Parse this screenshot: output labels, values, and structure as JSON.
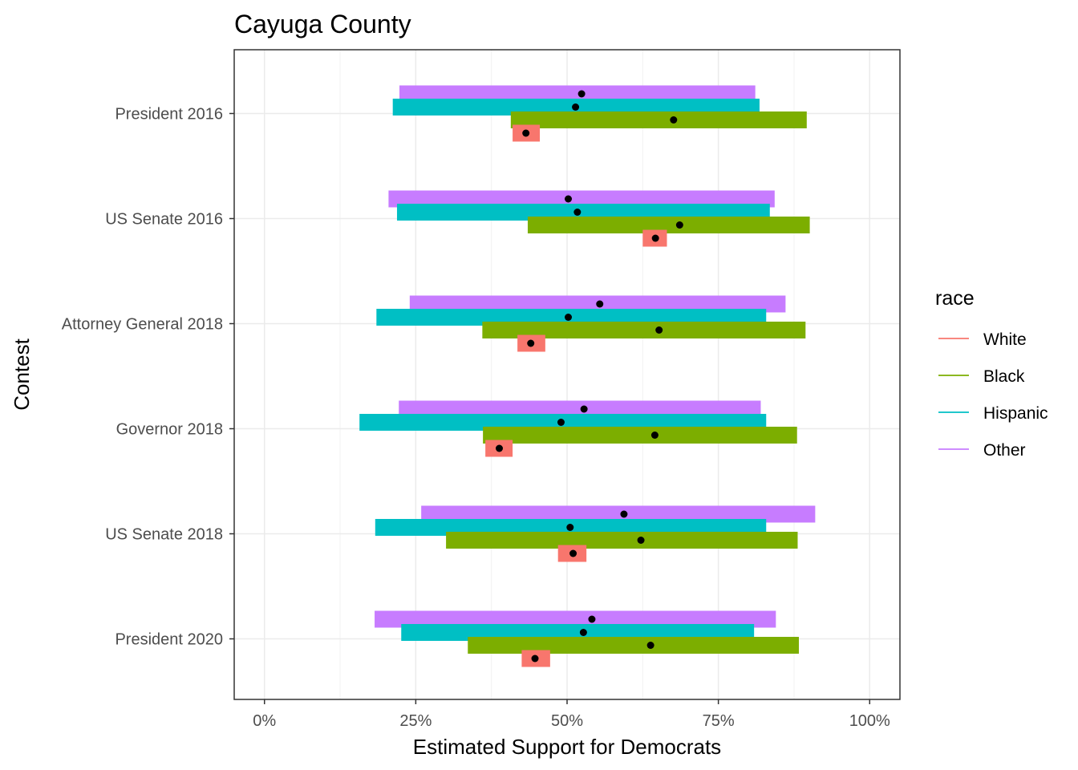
{
  "chart_data": {
    "type": "bar",
    "subtype": "horizontal-interval-with-point",
    "title": "Cayuga County",
    "xlabel": "Estimated Support for Democrats",
    "ylabel": "Contest",
    "xlim": [
      -0.05,
      1.05
    ],
    "x_ticks": [
      0,
      0.25,
      0.5,
      0.75,
      1.0
    ],
    "x_tick_labels": [
      "0%",
      "25%",
      "50%",
      "75%",
      "100%"
    ],
    "grid": true,
    "legend": {
      "title": "race",
      "placement": "right",
      "entries": [
        {
          "name": "White",
          "color": "#F8766D"
        },
        {
          "name": "Black",
          "color": "#7CAE00"
        },
        {
          "name": "Hispanic",
          "color": "#00BFC4"
        },
        {
          "name": "Other",
          "color": "#C77CFF"
        }
      ]
    },
    "categories": [
      "President 2016",
      "US Senate 2016",
      "Attorney General 2018",
      "Governor 2018",
      "US Senate 2018",
      "President 2020"
    ],
    "series": [
      {
        "name": "White",
        "color": "#F8766D",
        "points": [
          {
            "contest": "President 2016",
            "low": 0.41,
            "high": 0.455,
            "estimate": 0.432
          },
          {
            "contest": "US Senate 2016",
            "low": 0.625,
            "high": 0.665,
            "estimate": 0.646
          },
          {
            "contest": "Attorney General 2018",
            "low": 0.418,
            "high": 0.464,
            "estimate": 0.44
          },
          {
            "contest": "Governor 2018",
            "low": 0.365,
            "high": 0.41,
            "estimate": 0.388
          },
          {
            "contest": "US Senate 2018",
            "low": 0.485,
            "high": 0.532,
            "estimate": 0.51
          },
          {
            "contest": "President 2020",
            "low": 0.425,
            "high": 0.472,
            "estimate": 0.447
          }
        ]
      },
      {
        "name": "Black",
        "color": "#7CAE00",
        "points": [
          {
            "contest": "President 2016",
            "low": 0.407,
            "high": 0.896,
            "estimate": 0.676
          },
          {
            "contest": "US Senate 2016",
            "low": 0.435,
            "high": 0.901,
            "estimate": 0.686
          },
          {
            "contest": "Attorney General 2018",
            "low": 0.36,
            "high": 0.894,
            "estimate": 0.652
          },
          {
            "contest": "Governor 2018",
            "low": 0.361,
            "high": 0.88,
            "estimate": 0.645
          },
          {
            "contest": "US Senate 2018",
            "low": 0.3,
            "high": 0.881,
            "estimate": 0.622
          },
          {
            "contest": "President 2020",
            "low": 0.336,
            "high": 0.883,
            "estimate": 0.638
          }
        ]
      },
      {
        "name": "Hispanic",
        "color": "#00BFC4",
        "points": [
          {
            "contest": "President 2016",
            "low": 0.212,
            "high": 0.818,
            "estimate": 0.514
          },
          {
            "contest": "US Senate 2016",
            "low": 0.219,
            "high": 0.835,
            "estimate": 0.517
          },
          {
            "contest": "Attorney General 2018",
            "low": 0.185,
            "high": 0.829,
            "estimate": 0.502
          },
          {
            "contest": "Governor 2018",
            "low": 0.157,
            "high": 0.829,
            "estimate": 0.49
          },
          {
            "contest": "US Senate 2018",
            "low": 0.183,
            "high": 0.829,
            "estimate": 0.505
          },
          {
            "contest": "President 2020",
            "low": 0.226,
            "high": 0.809,
            "estimate": 0.527
          }
        ]
      },
      {
        "name": "Other",
        "color": "#C77CFF",
        "points": [
          {
            "contest": "President 2016",
            "low": 0.223,
            "high": 0.811,
            "estimate": 0.524
          },
          {
            "contest": "US Senate 2016",
            "low": 0.205,
            "high": 0.843,
            "estimate": 0.502
          },
          {
            "contest": "Attorney General 2018",
            "low": 0.24,
            "high": 0.861,
            "estimate": 0.554
          },
          {
            "contest": "Governor 2018",
            "low": 0.222,
            "high": 0.82,
            "estimate": 0.528
          },
          {
            "contest": "US Senate 2018",
            "low": 0.259,
            "high": 0.91,
            "estimate": 0.594
          },
          {
            "contest": "President 2020",
            "low": 0.182,
            "high": 0.845,
            "estimate": 0.541
          }
        ]
      }
    ]
  }
}
